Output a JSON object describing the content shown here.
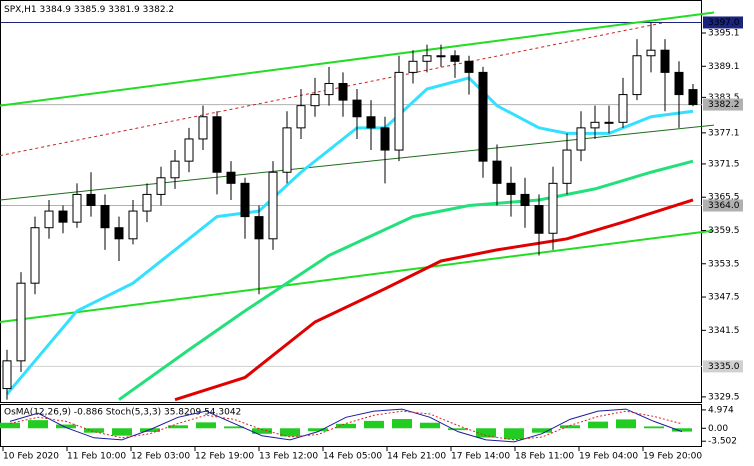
{
  "chart_data": {
    "type": "candlestick",
    "title": "SPX,H1",
    "header_values": [
      3384.9,
      3385.9,
      3381.9,
      3382.2
    ],
    "categories": [
      "10 Feb 2020",
      "11 Feb 10:00",
      "12 Feb 03:00",
      "12 Feb 19:00",
      "13 Feb 12:00",
      "14 Feb 05:00",
      "14 Feb 21:00",
      "17 Feb 14:00",
      "18 Feb 11:00",
      "19 Feb 04:00",
      "19 Feb 20:00"
    ],
    "candles": [
      [
        3331,
        3338,
        3329,
        3336
      ],
      [
        3336,
        3352,
        3334,
        3350
      ],
      [
        3350,
        3362,
        3348,
        3360
      ],
      [
        3360,
        3365,
        3358,
        3363
      ],
      [
        3363,
        3364,
        3359,
        3361
      ],
      [
        3361,
        3368,
        3360,
        3366
      ],
      [
        3366,
        3370,
        3362,
        3364
      ],
      [
        3364,
        3366,
        3356,
        3360
      ],
      [
        3360,
        3362,
        3354,
        3358
      ],
      [
        3358,
        3365,
        3357,
        3363
      ],
      [
        3363,
        3368,
        3361,
        3366
      ],
      [
        3366,
        3371,
        3364,
        3369
      ],
      [
        3369,
        3374,
        3367,
        3372
      ],
      [
        3372,
        3378,
        3370,
        3376
      ],
      [
        3376,
        3382,
        3374,
        3380
      ],
      [
        3380,
        3381,
        3366,
        3370
      ],
      [
        3370,
        3372,
        3365,
        3368
      ],
      [
        3368,
        3369,
        3358,
        3362
      ],
      [
        3362,
        3364,
        3348,
        3358
      ],
      [
        3358,
        3372,
        3356,
        3370
      ],
      [
        3370,
        3381,
        3368,
        3378
      ],
      [
        3378,
        3385,
        3376,
        3382
      ],
      [
        3382,
        3387,
        3380,
        3384
      ],
      [
        3384,
        3389,
        3382,
        3386
      ],
      [
        3386,
        3388,
        3380,
        3383
      ],
      [
        3383,
        3385,
        3376,
        3380
      ],
      [
        3380,
        3383,
        3374,
        3378
      ],
      [
        3378,
        3380,
        3368,
        3374
      ],
      [
        3374,
        3391,
        3372,
        3388
      ],
      [
        3388,
        3392,
        3386,
        3390
      ],
      [
        3390,
        3393,
        3388,
        3391
      ],
      [
        3391,
        3393,
        3389,
        3391
      ],
      [
        3391,
        3392,
        3387,
        3390
      ],
      [
        3390,
        3391,
        3384,
        3388
      ],
      [
        3388,
        3389,
        3369,
        3372
      ],
      [
        3372,
        3375,
        3364,
        3368
      ],
      [
        3368,
        3371,
        3362,
        3366
      ],
      [
        3366,
        3369,
        3360,
        3364
      ],
      [
        3364,
        3366,
        3355,
        3359
      ],
      [
        3359,
        3371,
        3356,
        3368
      ],
      [
        3368,
        3377,
        3366,
        3374
      ],
      [
        3374,
        3381,
        3372,
        3378
      ],
      [
        3378,
        3382,
        3376,
        3379
      ],
      [
        3379,
        3382,
        3377,
        3379
      ],
      [
        3379,
        3387,
        3378,
        3384
      ],
      [
        3384,
        3394,
        3383,
        3391
      ],
      [
        3391,
        3397,
        3388,
        3392
      ],
      [
        3392,
        3394,
        3381,
        3388
      ],
      [
        3388,
        3390,
        3378,
        3384
      ],
      [
        3384.9,
        3385.9,
        3381.9,
        3382.2
      ]
    ],
    "ylim": [
      3328.4,
      3401.05
    ],
    "yticks": [
      3395.1,
      3389.1,
      3383.5,
      3377.1,
      3371.5,
      3365.5,
      3359.5,
      3353.5,
      3347.5,
      3341.5,
      3329.5
    ],
    "price_lines": [
      {
        "value": 3397.0,
        "label": "3397.0",
        "color": "#1a237e"
      },
      {
        "value": 3382.2,
        "label": "3382.2",
        "color": "#b0b0b0"
      },
      {
        "value": 3364.0,
        "label": "3364.0",
        "color": "#b0b0b0"
      },
      {
        "value": 3335.0,
        "label": "3335.0",
        "color": "#d0d0d0"
      }
    ],
    "series": [
      {
        "color": "#33e0ff",
        "x": [
          0,
          5,
          9,
          13,
          15,
          18,
          21,
          25,
          27,
          30,
          33,
          35,
          38,
          40,
          43,
          46,
          49
        ],
        "values": [
          3330,
          3345,
          3350,
          3358,
          3362,
          3363,
          3370,
          3378,
          3378,
          3385,
          3387,
          3382,
          3378,
          3377,
          3377,
          3380,
          3381
        ]
      },
      {
        "color": "#22e07a",
        "x": [
          8,
          13,
          17,
          23,
          29,
          33,
          38,
          42,
          46,
          49
        ],
        "values": [
          3329,
          3338,
          3345,
          3355,
          3362,
          3364,
          3365,
          3367,
          3370,
          3372
        ]
      },
      {
        "color": "#e00000",
        "x": [
          12,
          17,
          22,
          27,
          31,
          35,
          40,
          44,
          49
        ],
        "values": [
          3329,
          3333,
          3343,
          3349,
          3354,
          3356,
          3358,
          3361,
          3365
        ]
      }
    ],
    "trendlines": [
      {
        "color": "#22dd22",
        "width": 2,
        "dash": false,
        "from": [
          -0.5,
          3382
        ],
        "to": [
          50.5,
          3398.8
        ]
      },
      {
        "color": "#22dd22",
        "width": 2,
        "dash": false,
        "from": [
          -0.5,
          3343
        ],
        "to": [
          50.5,
          3359.5
        ]
      },
      {
        "color": "#1d6b1d",
        "width": 1,
        "dash": false,
        "from": [
          -0.5,
          3365
        ],
        "to": [
          50.5,
          3378.5
        ]
      },
      {
        "color": "#cc2222",
        "width": 1,
        "dash": true,
        "from": [
          -0.5,
          3373
        ],
        "to": [
          47,
          3397
        ]
      }
    ],
    "oscillator": {
      "label": "OsMA(12,26,9) -0.886 Stoch(5,3,3) 35.8209 54.3042",
      "ylim": [
        -4.8,
        6.3
      ],
      "yticks": [
        4.974,
        {
          "value": 0,
          "label": "0.00"
        },
        -3.502
      ],
      "osma": [
        1.5,
        2.2,
        1.0,
        -1.2,
        -2.0,
        -1.0,
        0.8,
        1.6,
        0.5,
        -1.5,
        -2.2,
        -0.8,
        1.2,
        2.0,
        2.5,
        1.5,
        -0.5,
        -2.5,
        -3.0,
        -1.2,
        0.8,
        1.8,
        2.4,
        0.5,
        -0.9
      ],
      "stoch_ylim": [
        0,
        100
      ],
      "stoch_main": [
        60,
        80,
        45,
        20,
        15,
        40,
        70,
        85,
        55,
        25,
        15,
        35,
        70,
        85,
        90,
        70,
        35,
        15,
        10,
        30,
        65,
        85,
        90,
        60,
        35
      ],
      "stoch_signal": [
        55,
        70,
        60,
        35,
        20,
        30,
        55,
        75,
        65,
        40,
        22,
        28,
        55,
        75,
        85,
        78,
        50,
        25,
        15,
        22,
        50,
        72,
        85,
        72,
        54
      ]
    }
  }
}
